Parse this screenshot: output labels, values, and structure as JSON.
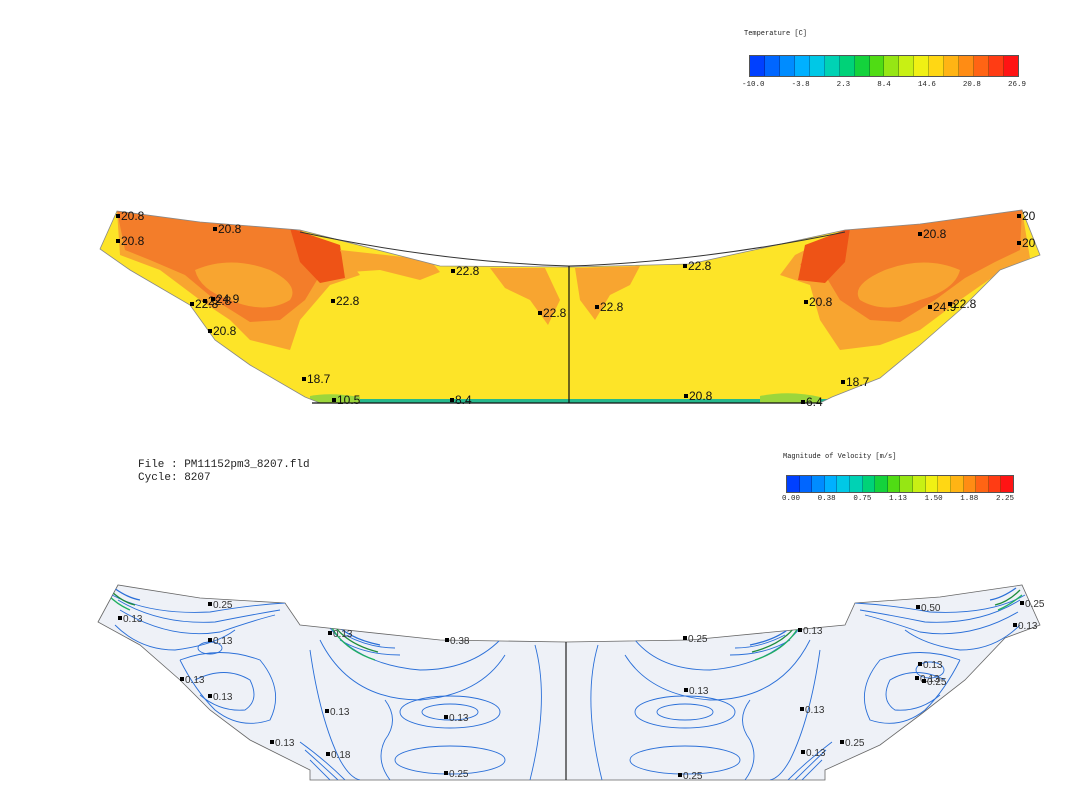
{
  "temperature_legend": {
    "title": "Temperature [C]",
    "ticks": [
      "-10.0",
      "-3.8",
      "2.3",
      "8.4",
      "14.6",
      "20.8",
      "26.9"
    ],
    "colors": [
      "#0040ff",
      "#0066ff",
      "#008cff",
      "#00b0ff",
      "#00c8e6",
      "#00d2b4",
      "#00d278",
      "#14d23c",
      "#50dc14",
      "#96e614",
      "#c8f014",
      "#f0f014",
      "#ffd714",
      "#ffb414",
      "#ff8c14",
      "#ff6414",
      "#ff3c14",
      "#ff1414"
    ]
  },
  "velocity_legend": {
    "title": "Magnitude of Velocity [m/s]",
    "ticks": [
      "0.00",
      "0.38",
      "0.75",
      "1.13",
      "1.50",
      "1.88",
      "2.25"
    ],
    "colors": [
      "#0040ff",
      "#0066ff",
      "#008cff",
      "#00b0ff",
      "#00c8e6",
      "#00d2b4",
      "#00d278",
      "#14d23c",
      "#50dc14",
      "#96e614",
      "#c8f014",
      "#f0f014",
      "#ffd714",
      "#ffb414",
      "#ff8c14",
      "#ff6414",
      "#ff3c14",
      "#ff1414"
    ]
  },
  "file_info": {
    "file_line": "File : PM11152pm3_8207.fld",
    "cycle_line": "Cycle: 8207"
  },
  "temperature_plot": {
    "colors": {
      "base": "#fde428",
      "mid": "#f8a530",
      "hot": "#f37d2a",
      "hottest": "#ee5316",
      "cool": "#26b88c",
      "green": "#9cd63c"
    },
    "labels": [
      "20.8",
      "20.8",
      "20.8",
      "22.8",
      "22.8",
      "24.9",
      "22.8",
      "20.8",
      "18.7",
      "10.5",
      "8.4",
      "22.8",
      "22.8",
      "22.8",
      "22.8",
      "20.8",
      "6.4",
      "18.7",
      "20.8",
      "20.8",
      "20",
      "20",
      "24.9",
      "22.8"
    ]
  },
  "velocity_plot": {
    "colors": {
      "fill": "#eef1f7",
      "contour": "#2a6fd8",
      "hotcontour": "#20b060"
    },
    "labels": [
      "0.25",
      "0.13",
      "0.13",
      "0.13",
      "0.13",
      "0.13",
      "0.13",
      "0.18",
      "0.38",
      "0.13",
      "0.13",
      "0.25",
      "0.25",
      "0.13",
      "0.13",
      "0.13",
      "0.13",
      "0.25",
      "0.25",
      "0.13",
      "0.50",
      "0.13",
      "0.25",
      "0.25",
      "0.13"
    ]
  }
}
